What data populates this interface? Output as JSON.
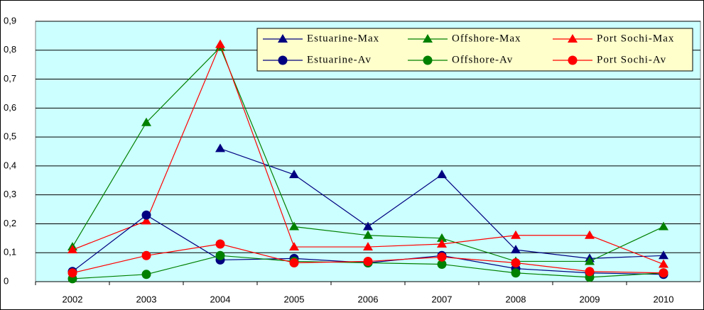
{
  "chart_data": {
    "type": "line",
    "categories": [
      "2002",
      "2003",
      "2004",
      "2005",
      "2006",
      "2007",
      "2008",
      "2009",
      "2010"
    ],
    "ylim": [
      0,
      0.9
    ],
    "yticks": [
      0,
      {
        "value": 0.1,
        "label": "0,1"
      },
      {
        "value": 0.2,
        "label": "0,2"
      },
      {
        "value": 0.3,
        "label": "0,3"
      },
      {
        "value": 0.4,
        "label": "0,4"
      },
      {
        "value": 0.5,
        "label": "0,5"
      },
      {
        "value": 0.6,
        "label": "0,6"
      },
      {
        "value": 0.7,
        "label": "0,7"
      },
      {
        "value": 0.8,
        "label": "0,8"
      },
      {
        "value": 0.9,
        "label": "0,9"
      }
    ],
    "grid": true,
    "series": [
      {
        "name": "Estuarine-Max",
        "color": "#000080",
        "marker": "triangle",
        "values": [
          null,
          null,
          0.46,
          0.37,
          0.19,
          0.37,
          0.11,
          0.08,
          0.09
        ]
      },
      {
        "name": "Offshore-Max",
        "color": "#008000",
        "marker": "triangle",
        "values": [
          0.12,
          0.55,
          0.81,
          0.19,
          0.16,
          0.15,
          0.07,
          0.07,
          0.19
        ]
      },
      {
        "name": "Port Sochi-Max",
        "color": "#ff0000",
        "marker": "triangle",
        "values": [
          0.11,
          0.21,
          0.82,
          0.12,
          0.12,
          0.13,
          0.16,
          0.16,
          0.06
        ]
      },
      {
        "name": "Estuarine-Av",
        "color": "#000080",
        "marker": "circle",
        "values": [
          0.035,
          0.23,
          0.075,
          0.08,
          0.065,
          0.09,
          0.045,
          0.03,
          0.025
        ]
      },
      {
        "name": "Offshore-Av",
        "color": "#008000",
        "marker": "circle",
        "values": [
          0.01,
          0.025,
          0.09,
          0.07,
          0.065,
          0.06,
          0.03,
          0.015,
          0.03
        ]
      },
      {
        "name": "Port Sochi-Av",
        "color": "#ff0000",
        "marker": "circle",
        "values": [
          0.03,
          0.09,
          0.13,
          0.065,
          0.07,
          0.085,
          0.065,
          0.035,
          0.03
        ]
      }
    ]
  }
}
